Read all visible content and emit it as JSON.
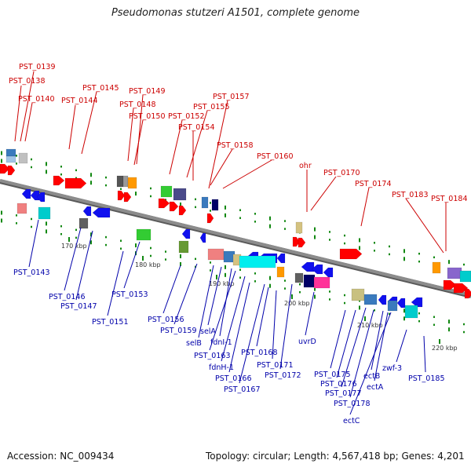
{
  "title": "Pseudomonas stutzeri A1501, complete genome",
  "footer": {
    "accession": "Accession: NC_009434",
    "summary": "Topology: circular; Length: 4,567,418 bp; Genes: 4,201"
  },
  "colors": {
    "backbone": "#8c8c8c",
    "top_label": "#cc0000",
    "bottom_label": "#0000aa",
    "scale_text": "#333333",
    "tick": "#118811",
    "forward_gene": "#ff0000",
    "reverse_gene": "#1010ee"
  },
  "scale_labels": [
    "170 kbp",
    "180 kbp",
    "190 kbp",
    "200 kbp",
    "210 kbp",
    "220 kbp"
  ],
  "top_labels": [
    "PST_0139",
    "PST_0138",
    "PST_0140",
    "PST_0145",
    "PST_0144",
    "PST_0149",
    "PST_0148",
    "PST_0150",
    "PST_0157",
    "PST_0152",
    "PST_0155",
    "PST_0154",
    "PST_0158",
    "PST_0160",
    "ohr",
    "PST_0170",
    "PST_0174",
    "PST_0183",
    "PST_0184"
  ],
  "bottom_labels": [
    "PST_0143",
    "PST_0146",
    "PST_0147",
    "PST_0153",
    "PST_0151",
    "PST_0156",
    "PST_0159",
    "selB",
    "selA",
    "fdnI-1",
    "PST_0163",
    "fdnH-1",
    "PST_0166",
    "PST_0167",
    "PST_0168",
    "PST_0171",
    "PST_0172",
    "uvrD",
    "PST_0175",
    "PST_0176",
    "PST_0177",
    "PST_0178",
    "ectC",
    "ectB",
    "ectA",
    "zwf-3",
    "PST_0185"
  ]
}
